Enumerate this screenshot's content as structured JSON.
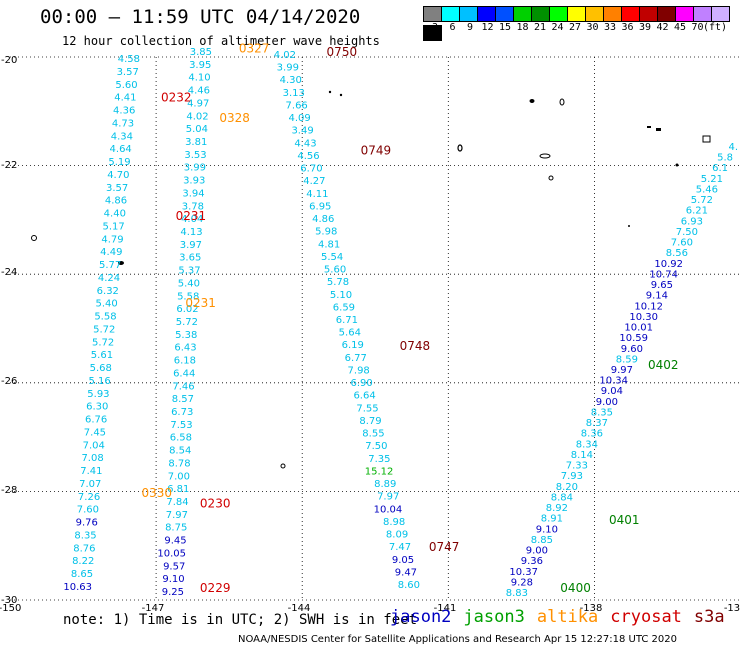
{
  "header": {
    "title": "00:00 – 11:59 UTC 04/14/2020",
    "subtitle": "12 hour collection of altimeter wave heights"
  },
  "legend": {
    "colors": [
      "#808080",
      "#00ffff",
      "#00c0ff",
      "#0000ff",
      "#0050ff",
      "#00d000",
      "#009000",
      "#00ff00",
      "#ffff00",
      "#ffc000",
      "#ff8000",
      "#ff0000",
      "#c00000",
      "#800000",
      "#ff00ff",
      "#c080ff",
      "#d0b0ff",
      "#000000"
    ],
    "labels": [
      "3",
      "6",
      "9",
      "12",
      "15",
      "18",
      "21",
      "24",
      "27",
      "30",
      "33",
      "36",
      "39",
      "42",
      "45",
      "70",
      "(ft)"
    ]
  },
  "axes": {
    "lon_labels": [
      "-150",
      "-147",
      "-144",
      "-141",
      "-138",
      "-13"
    ],
    "lat_labels": [
      "-20",
      "-22",
      "-24",
      "-26",
      "-28",
      "-30"
    ]
  },
  "footer": {
    "note": "note: 1) Time is in UTC; 2) SWH is in feet",
    "satellites": [
      {
        "name": "jason2",
        "color": "#0000c0"
      },
      {
        "name": "jason3",
        "color": "#00a000"
      },
      {
        "name": "altika",
        "color": "#ff9000"
      },
      {
        "name": "cryosat",
        "color": "#d00000"
      },
      {
        "name": "s3a",
        "color": "#800000"
      }
    ],
    "credit": "NOAA/NESDIS Center for Satellite Applications and Research   Apr 15 12:27:18 UTC 2020"
  },
  "tracks": [
    {
      "id": "pass-A",
      "color": "#00c0e8",
      "x0": 140,
      "y0": 62,
      "x1": 92,
      "y1": 590,
      "values": [
        "4.58",
        "3.57",
        "5.60",
        "4.41",
        "4.36",
        "4.73",
        "4.34",
        "4.64",
        "5.19",
        "4.70",
        "3.57",
        "4.86",
        "4.40",
        "5.17",
        "4.79",
        "4.49",
        "5.77",
        "4.24",
        "6.32",
        "5.40",
        "5.58",
        "5.72",
        "5.72",
        "5.61",
        "5.68",
        "5.16",
        "5.93",
        "6.30",
        "6.76",
        "7.45",
        "7.04",
        "7.08",
        "7.41",
        "7.07",
        "7.26",
        "7.60",
        "9.76",
        "8.35",
        "8.76",
        "8.22",
        "8.65",
        "10.63"
      ]
    },
    {
      "id": "pass-B",
      "color": "#00c0e8",
      "x0": 212,
      "y0": 55,
      "x1": 184,
      "y1": 595,
      "values": [
        "3.85",
        "3.95",
        "4.10",
        "4.46",
        "4.97",
        "4.02",
        "5.04",
        "3.81",
        "3.53",
        "3.99",
        "3.93",
        "3.94",
        "3.78",
        "4.04",
        "4.13",
        "3.97",
        "3.65",
        "5.37",
        "5.40",
        "5.58",
        "6.02",
        "5.72",
        "5.38",
        "6.43",
        "6.18",
        "6.44",
        "7.46",
        "8.57",
        "6.73",
        "7.53",
        "6.58",
        "8.54",
        "8.78",
        "7.00",
        "6.81",
        "7.84",
        "7.97",
        "8.75",
        "9.45",
        "10.05",
        "9.57",
        "9.10",
        "9.25"
      ]
    },
    {
      "id": "pass-C",
      "color": "#00c0e8",
      "x0": 296,
      "y0": 58,
      "x1": 420,
      "y1": 588,
      "values": [
        "4.02",
        "3.99",
        "4.30",
        "3.13",
        "7.66",
        "4.09",
        "3.49",
        "4.43",
        "4.56",
        "6.70",
        "4.27",
        "4.11",
        "6.95",
        "4.86",
        "5.98",
        "4.81",
        "5.54",
        "5.60",
        "5.78",
        "5.10",
        "6.59",
        "6.71",
        "5.64",
        "6.19",
        "6.77",
        "7.98",
        "6.90",
        "6.64",
        "7.55",
        "8.79",
        "8.55",
        "7.50",
        "7.35",
        "15.12",
        "8.89",
        "7.97",
        "10.04",
        "8.98",
        "8.09",
        "7.47",
        "9.05",
        "9.47",
        "8.60"
      ]
    },
    {
      "id": "pass-D",
      "color": "#00c0e8",
      "x0": 738,
      "y0": 150,
      "x1": 528,
      "y1": 596,
      "values": [
        "4.",
        "5.8",
        "6.1",
        "5.21",
        "5.46",
        "5.72",
        "6.21",
        "6.93",
        "7.50",
        "7.60",
        "8.56",
        "10.92",
        "10.74",
        "9.65",
        "9.14",
        "10.12",
        "10.30",
        "10.01",
        "10.59",
        "9.60",
        "8.59",
        "9.97",
        "10.34",
        "9.04",
        "9.00",
        "8.35",
        "8.37",
        "8.36",
        "8.34",
        "8.14",
        "7.33",
        "7.93",
        "8.20",
        "8.84",
        "8.92",
        "8.91",
        "9.10",
        "8.85",
        "9.00",
        "9.36",
        "10.37",
        "9.28",
        "8.83"
      ]
    }
  ],
  "pass_labels": [
    {
      "text": "0327",
      "lon": -145.3,
      "lat": -19.92,
      "color": "#ff9000"
    },
    {
      "text": "0750",
      "lon": -143.5,
      "lat": -19.98,
      "color": "#800000"
    },
    {
      "text": "0232",
      "lon": -146.9,
      "lat": -20.82,
      "color": "#d00000"
    },
    {
      "text": "0328",
      "lon": -145.7,
      "lat": -21.2,
      "color": "#ff9000"
    },
    {
      "text": "0749",
      "lon": -142.8,
      "lat": -21.8,
      "color": "#800000"
    },
    {
      "text": "0231",
      "lon": -146.6,
      "lat": -23.0,
      "color": "#d00000"
    },
    {
      "text": "0231",
      "lon": -146.4,
      "lat": -24.6,
      "color": "#ff9000"
    },
    {
      "text": "0748",
      "lon": -142.0,
      "lat": -25.4,
      "color": "#800000"
    },
    {
      "text": "0402",
      "lon": -136.9,
      "lat": -25.75,
      "color": "#008000"
    },
    {
      "text": "0330",
      "lon": -147.3,
      "lat": -28.1,
      "color": "#ff9000"
    },
    {
      "text": "0230",
      "lon": -146.1,
      "lat": -28.3,
      "color": "#d00000"
    },
    {
      "text": "0401",
      "lon": -137.7,
      "lat": -28.6,
      "color": "#008000"
    },
    {
      "text": "0747",
      "lon": -141.4,
      "lat": -29.1,
      "color": "#800000"
    },
    {
      "text": "0229",
      "lon": -146.1,
      "lat": -29.85,
      "color": "#d00000"
    },
    {
      "text": "0400",
      "lon": -138.7,
      "lat": -29.85,
      "color": "#008000"
    }
  ]
}
